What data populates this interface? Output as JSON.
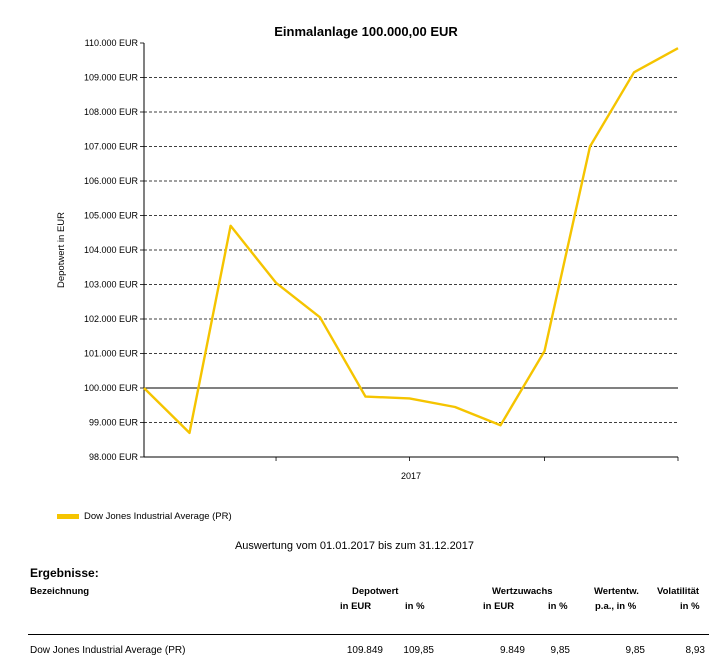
{
  "chart_data": {
    "type": "line",
    "title": "Einmalanlage 100.000,00 EUR",
    "ylabel": "Depotwert in EUR",
    "xlabel": "",
    "x_tick_labels": [
      "2017"
    ],
    "y_tick_labels": [
      "110.000 EUR",
      "109.000 EUR",
      "108.000 EUR",
      "107.000 EUR",
      "106.000 EUR",
      "105.000 EUR",
      "104.000 EUR",
      "103.000 EUR",
      "102.000 EUR",
      "101.000 EUR",
      "100.000 EUR",
      "99.000 EUR",
      "98.000 EUR"
    ],
    "ylim": [
      98000,
      110000
    ],
    "grid": true,
    "legend_position": "bottom-left",
    "series": [
      {
        "name": "Dow Jones Industrial Average (PR)",
        "color": "#f5c400",
        "x": [
          "2017-01-01",
          "2017-02-01",
          "2017-03-01",
          "2017-04-01",
          "2017-05-01",
          "2017-06-01",
          "2017-07-01",
          "2017-08-01",
          "2017-09-01",
          "2017-10-01",
          "2017-11-01",
          "2017-12-01",
          "2017-12-31"
        ],
        "values": [
          100000,
          98700,
          104700,
          103050,
          102050,
          99750,
          99700,
          99450,
          98920,
          101070,
          107000,
          109150,
          109849
        ]
      }
    ]
  },
  "legend": {
    "label": "Dow Jones Industrial Average (PR)",
    "color": "#f5c400"
  },
  "evaluation": "Auswertung vom 01.01.2017 bis zum 31.12.2017",
  "results": {
    "title": "Ergebnisse:",
    "header": {
      "bezeichnung": "Bezeichnung",
      "depotwert": "Depotwert",
      "depot_eur": "in EUR",
      "depot_pct": "in %",
      "wertzuwachs": "Wertzuwachs",
      "wz_eur": "in EUR",
      "wz_pct": "in %",
      "wertentw": "Wertentw.",
      "wertentw_sub": "p.a., in %",
      "volatilitaet": "Volatilität",
      "vol_sub": "in %"
    },
    "row": {
      "name": "Dow Jones Industrial Average (PR)",
      "depot_eur": "109.849",
      "depot_pct": "109,85",
      "wz_eur": "9.849",
      "wz_pct": "9,85",
      "wertentw": "9,85",
      "vol": "8,93"
    }
  }
}
